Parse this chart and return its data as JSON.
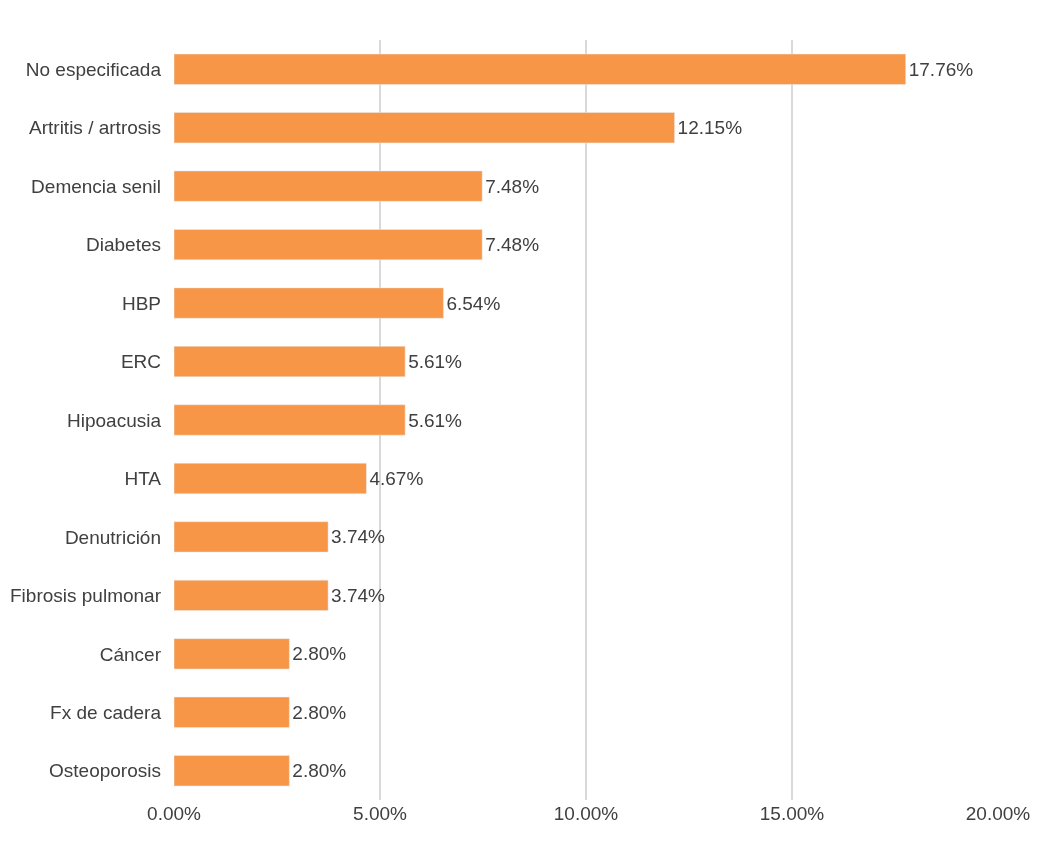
{
  "chart_data": {
    "type": "bar",
    "orientation": "horizontal",
    "categories": [
      "No especificada",
      "Artritis / artrosis",
      "Demencia senil",
      "Diabetes",
      "HBP",
      "ERC",
      "Hipoacusia",
      "HTA",
      "Denutrición",
      "Fibrosis pulmonar",
      "Cáncer",
      "Fx de cadera",
      "Osteoporosis"
    ],
    "values": [
      17.76,
      12.15,
      7.48,
      7.48,
      6.54,
      5.61,
      5.61,
      4.67,
      3.74,
      3.74,
      2.8,
      2.8,
      2.8
    ],
    "value_labels": [
      "17.76%",
      "12.15%",
      "7.48%",
      "7.48%",
      "6.54%",
      "5.61%",
      "5.61%",
      "4.67%",
      "3.74%",
      "3.74%",
      "2.80%",
      "2.80%",
      "2.80%"
    ],
    "color": "#f79646",
    "xlim": [
      0,
      20
    ],
    "xticks": [
      {
        "value": 0,
        "label": "0.00%"
      },
      {
        "value": 5,
        "label": "5.00%"
      },
      {
        "value": 10,
        "label": "10.00%"
      },
      {
        "value": 15,
        "label": "15.00%"
      },
      {
        "value": 20,
        "label": "20.00%"
      }
    ],
    "grid": "x",
    "legend": false
  }
}
